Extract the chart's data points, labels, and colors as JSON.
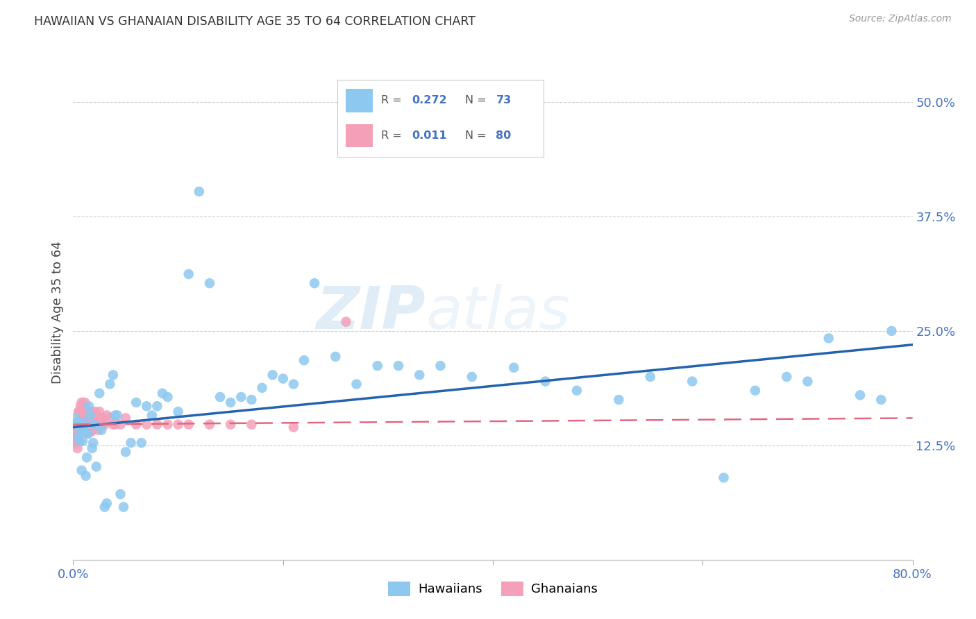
{
  "title": "HAWAIIAN VS GHANAIAN DISABILITY AGE 35 TO 64 CORRELATION CHART",
  "source": "Source: ZipAtlas.com",
  "ylabel": "Disability Age 35 to 64",
  "xlim": [
    0.0,
    0.8
  ],
  "ylim": [
    0.0,
    0.54
  ],
  "y_ticks": [
    0.125,
    0.25,
    0.375,
    0.5
  ],
  "y_tick_labels": [
    "12.5%",
    "25.0%",
    "37.5%",
    "50.0%"
  ],
  "background_color": "#ffffff",
  "hawaiian_color": "#8dc8f0",
  "hawaiian_line_color": "#2463ae",
  "ghanaian_color": "#f4a0b8",
  "ghanaian_line_color": "#e06880",
  "hawaiians_x": [
    0.002,
    0.003,
    0.004,
    0.005,
    0.006,
    0.007,
    0.008,
    0.009,
    0.01,
    0.011,
    0.012,
    0.013,
    0.014,
    0.015,
    0.016,
    0.018,
    0.019,
    0.02,
    0.022,
    0.025,
    0.027,
    0.03,
    0.032,
    0.035,
    0.038,
    0.04,
    0.042,
    0.045,
    0.048,
    0.05,
    0.055,
    0.06,
    0.065,
    0.07,
    0.075,
    0.08,
    0.085,
    0.09,
    0.1,
    0.11,
    0.12,
    0.13,
    0.14,
    0.15,
    0.16,
    0.17,
    0.18,
    0.19,
    0.2,
    0.21,
    0.22,
    0.23,
    0.25,
    0.27,
    0.29,
    0.31,
    0.33,
    0.35,
    0.38,
    0.42,
    0.45,
    0.48,
    0.52,
    0.55,
    0.59,
    0.62,
    0.65,
    0.68,
    0.7,
    0.72,
    0.75,
    0.77,
    0.78
  ],
  "hawaiians_y": [
    0.155,
    0.148,
    0.15,
    0.135,
    0.13,
    0.142,
    0.098,
    0.13,
    0.15,
    0.14,
    0.092,
    0.112,
    0.138,
    0.168,
    0.158,
    0.122,
    0.128,
    0.148,
    0.102,
    0.182,
    0.142,
    0.058,
    0.062,
    0.192,
    0.202,
    0.158,
    0.158,
    0.072,
    0.058,
    0.118,
    0.128,
    0.172,
    0.128,
    0.168,
    0.158,
    0.168,
    0.182,
    0.178,
    0.162,
    0.312,
    0.402,
    0.302,
    0.178,
    0.172,
    0.178,
    0.175,
    0.188,
    0.202,
    0.198,
    0.192,
    0.218,
    0.302,
    0.222,
    0.192,
    0.212,
    0.212,
    0.202,
    0.212,
    0.2,
    0.21,
    0.195,
    0.185,
    0.175,
    0.2,
    0.195,
    0.09,
    0.185,
    0.2,
    0.195,
    0.242,
    0.18,
    0.175,
    0.25
  ],
  "ghanaians_x": [
    0.001,
    0.001,
    0.001,
    0.001,
    0.002,
    0.002,
    0.002,
    0.002,
    0.002,
    0.003,
    0.003,
    0.003,
    0.003,
    0.004,
    0.004,
    0.004,
    0.004,
    0.005,
    0.005,
    0.005,
    0.005,
    0.006,
    0.006,
    0.006,
    0.007,
    0.007,
    0.007,
    0.008,
    0.008,
    0.008,
    0.009,
    0.009,
    0.01,
    0.01,
    0.01,
    0.011,
    0.011,
    0.012,
    0.012,
    0.013,
    0.013,
    0.014,
    0.014,
    0.015,
    0.015,
    0.016,
    0.016,
    0.017,
    0.017,
    0.018,
    0.018,
    0.019,
    0.02,
    0.02,
    0.021,
    0.022,
    0.023,
    0.024,
    0.025,
    0.026,
    0.027,
    0.028,
    0.03,
    0.032,
    0.035,
    0.038,
    0.04,
    0.045,
    0.05,
    0.06,
    0.07,
    0.08,
    0.09,
    0.1,
    0.11,
    0.13,
    0.15,
    0.17,
    0.21,
    0.26
  ],
  "ghanaians_y": [
    0.14,
    0.135,
    0.132,
    0.128,
    0.132,
    0.14,
    0.135,
    0.145,
    0.13,
    0.128,
    0.135,
    0.13,
    0.148,
    0.14,
    0.136,
    0.13,
    0.122,
    0.162,
    0.148,
    0.142,
    0.138,
    0.162,
    0.152,
    0.148,
    0.168,
    0.162,
    0.155,
    0.172,
    0.162,
    0.155,
    0.158,
    0.152,
    0.148,
    0.155,
    0.145,
    0.172,
    0.168,
    0.158,
    0.152,
    0.155,
    0.148,
    0.145,
    0.138,
    0.155,
    0.148,
    0.162,
    0.155,
    0.148,
    0.14,
    0.155,
    0.148,
    0.142,
    0.158,
    0.148,
    0.162,
    0.155,
    0.148,
    0.142,
    0.162,
    0.155,
    0.148,
    0.155,
    0.148,
    0.158,
    0.155,
    0.148,
    0.148,
    0.148,
    0.155,
    0.148,
    0.148,
    0.148,
    0.148,
    0.148,
    0.148,
    0.148,
    0.148,
    0.148,
    0.145,
    0.26
  ],
  "legend_R_hw": "0.272",
  "legend_N_hw": "73",
  "legend_R_gh": "0.011",
  "legend_N_gh": "80"
}
